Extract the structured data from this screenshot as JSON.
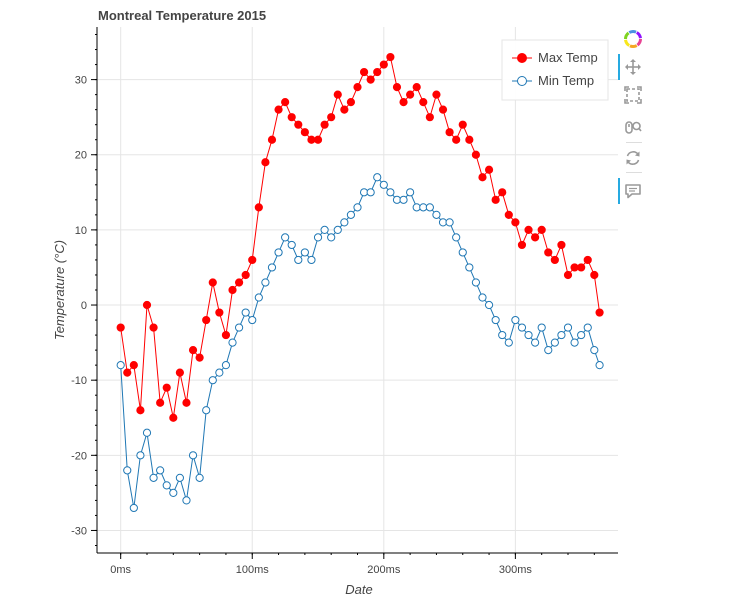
{
  "chart_data": {
    "type": "line",
    "title": "Montreal Temperature 2015",
    "xlabel": "Date",
    "ylabel": "Temperature (°C)",
    "x_axis": {
      "tick_values": [
        0,
        100,
        200,
        300
      ],
      "tick_labels": [
        "0ms",
        "100ms",
        "200ms",
        "300ms"
      ],
      "range": [
        -18,
        378
      ]
    },
    "y_axis": {
      "tick_values": [
        -30,
        -20,
        -10,
        0,
        10,
        20,
        30
      ],
      "tick_labels": [
        "-30",
        "-20",
        "-10",
        "0",
        "10",
        "20",
        "30"
      ],
      "range": [
        -33,
        37
      ]
    },
    "grid": true,
    "legend": {
      "placement": "top-right"
    },
    "series": [
      {
        "name": "Max Temp",
        "color": "#ff0000",
        "marker": "filled-circle",
        "x": [
          0,
          5,
          10,
          15,
          20,
          25,
          30,
          35,
          40,
          45,
          50,
          55,
          60,
          65,
          70,
          75,
          80,
          85,
          90,
          95,
          100,
          105,
          110,
          115,
          120,
          125,
          130,
          135,
          140,
          145,
          150,
          155,
          160,
          165,
          170,
          175,
          180,
          185,
          190,
          195,
          200,
          205,
          210,
          215,
          220,
          225,
          230,
          235,
          240,
          245,
          250,
          255,
          260,
          265,
          270,
          275,
          280,
          285,
          290,
          295,
          300,
          305,
          310,
          315,
          320,
          325,
          330,
          335,
          340,
          345,
          350,
          355,
          360,
          364
        ],
        "y": [
          -3,
          -9,
          -8,
          -14,
          0,
          -3,
          -13,
          -11,
          -15,
          -9,
          -13,
          -6,
          -7,
          -2,
          3,
          -1,
          -4,
          2,
          3,
          4,
          6,
          13,
          19,
          22,
          26,
          27,
          25,
          24,
          23,
          22,
          22,
          24,
          25,
          28,
          26,
          27,
          29,
          31,
          30,
          31,
          32,
          33,
          29,
          27,
          28,
          29,
          27,
          25,
          28,
          26,
          23,
          22,
          24,
          22,
          20,
          17,
          18,
          14,
          15,
          12,
          11,
          8,
          10,
          9,
          10,
          7,
          6,
          8,
          4,
          5,
          5,
          6,
          4,
          -1
        ]
      },
      {
        "name": "Min Temp",
        "color": "#1f77b4",
        "marker": "open-circle",
        "x": [
          0,
          5,
          10,
          15,
          20,
          25,
          30,
          35,
          40,
          45,
          50,
          55,
          60,
          65,
          70,
          75,
          80,
          85,
          90,
          95,
          100,
          105,
          110,
          115,
          120,
          125,
          130,
          135,
          140,
          145,
          150,
          155,
          160,
          165,
          170,
          175,
          180,
          185,
          190,
          195,
          200,
          205,
          210,
          215,
          220,
          225,
          230,
          235,
          240,
          245,
          250,
          255,
          260,
          265,
          270,
          275,
          280,
          285,
          290,
          295,
          300,
          305,
          310,
          315,
          320,
          325,
          330,
          335,
          340,
          345,
          350,
          355,
          360,
          364
        ],
        "y": [
          -8,
          -22,
          -27,
          -20,
          -17,
          -23,
          -22,
          -24,
          -25,
          -23,
          -26,
          -20,
          -23,
          -14,
          -10,
          -9,
          -8,
          -5,
          -3,
          -1,
          -2,
          1,
          3,
          5,
          7,
          9,
          8,
          6,
          7,
          6,
          9,
          10,
          9,
          10,
          11,
          12,
          13,
          15,
          15,
          17,
          16,
          15,
          14,
          14,
          15,
          13,
          13,
          13,
          12,
          11,
          11,
          9,
          7,
          5,
          3,
          1,
          0,
          -2,
          -4,
          -5,
          -2,
          -3,
          -4,
          -5,
          -3,
          -6,
          -5,
          -4,
          -3,
          -5,
          -4,
          -3,
          -6,
          -8
        ]
      }
    ]
  },
  "toolbar": {
    "tools": [
      {
        "name": "bokeh-logo-icon",
        "label": "Bokeh",
        "active": false
      },
      {
        "name": "pan-icon",
        "label": "Pan",
        "active": true
      },
      {
        "name": "box-zoom-icon",
        "label": "Box Zoom",
        "active": false
      },
      {
        "name": "wheel-zoom-icon",
        "label": "Wheel Zoom",
        "active": false
      },
      {
        "name": "reset-icon",
        "label": "Reset",
        "active": false
      },
      {
        "name": "hover-icon",
        "label": "Hover",
        "active": true
      }
    ]
  }
}
